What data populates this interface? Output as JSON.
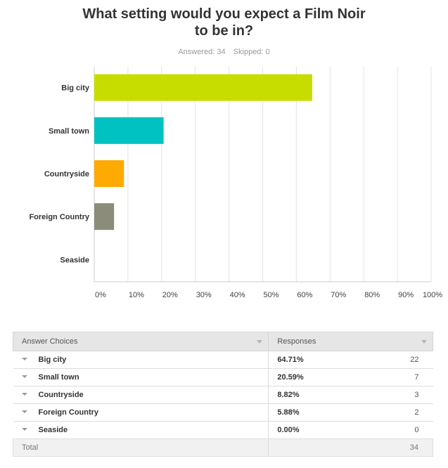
{
  "chart_data": {
    "type": "bar",
    "orientation": "horizontal",
    "title": "What setting would you expect a Film Noir to be in?",
    "categories": [
      "Big city",
      "Small town",
      "Countryside",
      "Foreign Country",
      "Seaside"
    ],
    "values": [
      64.71,
      20.59,
      8.82,
      5.88,
      0.0
    ],
    "colors": [
      "#c7dd00",
      "#00c2c2",
      "#ffaa00",
      "#8c8c7a",
      "#cccccc"
    ],
    "xlim": [
      0,
      100
    ],
    "x_ticks": [
      "0%",
      "10%",
      "20%",
      "30%",
      "40%",
      "50%",
      "60%",
      "70%",
      "80%",
      "90%",
      "100%"
    ],
    "grid": true
  },
  "header": {
    "title_line1": "What setting would you expect a Film Noir",
    "title_line2": "to be in?",
    "answered": "Answered: 34",
    "skipped": "Skipped: 0"
  },
  "table": {
    "col_choice": "Answer Choices",
    "col_responses": "Responses",
    "rows": [
      {
        "choice": "Big city",
        "percent": "64.71%",
        "count": "22"
      },
      {
        "choice": "Small town",
        "percent": "20.59%",
        "count": "7"
      },
      {
        "choice": "Countryside",
        "percent": "8.82%",
        "count": "3"
      },
      {
        "choice": "Foreign Country",
        "percent": "5.88%",
        "count": "2"
      },
      {
        "choice": "Seaside",
        "percent": "0.00%",
        "count": "0"
      }
    ],
    "total_label": "Total",
    "total_value": "34"
  }
}
